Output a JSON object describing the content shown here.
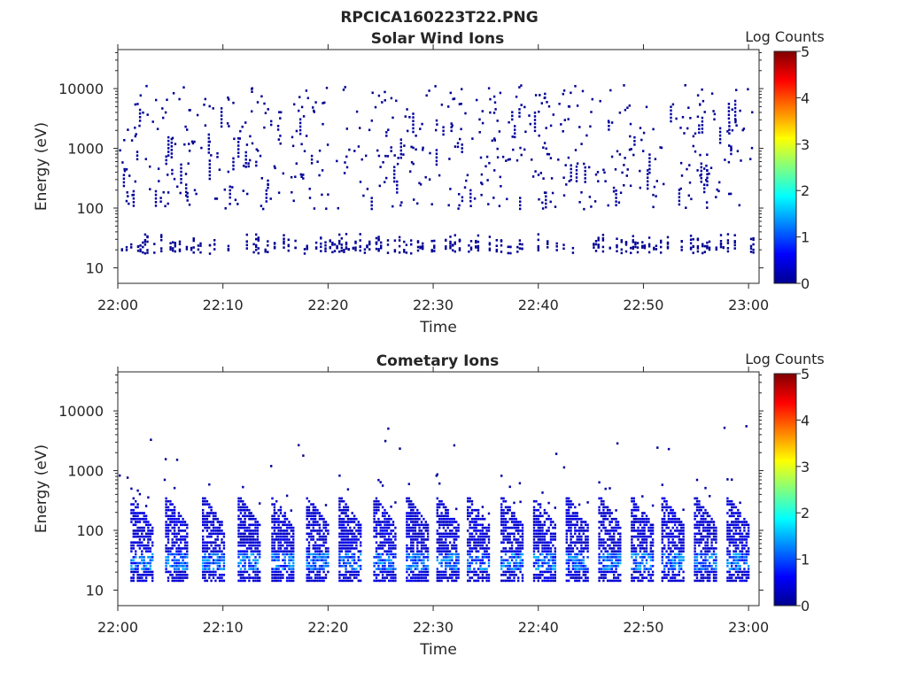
{
  "figure_title": "RPCICA160223T22.PNG",
  "colors": {
    "background": "#ffffff",
    "axis": "#262626",
    "colormap": "jet",
    "base_counts_color": "#00008f"
  },
  "chart_data": [
    {
      "type": "heatmap",
      "title": "Solar Wind Ions",
      "xlabel": "Time",
      "ylabel": "Energy (eV)",
      "xticks": [
        "22:00",
        "22:10",
        "22:20",
        "22:30",
        "22:40",
        "22:50",
        "23:00"
      ],
      "xlim_minutes": [
        0,
        61
      ],
      "yscale": "log",
      "ylim": [
        5.5,
        45000
      ],
      "yticks": [
        10,
        100,
        1000,
        10000
      ],
      "ytick_labels": [
        "10",
        "100",
        "1000",
        "10000"
      ],
      "colorbar": {
        "label": "Log Counts",
        "range": [
          0,
          5
        ],
        "ticks": [
          "0",
          "1",
          "2",
          "3",
          "4",
          "5"
        ]
      },
      "description_values": {
        "dominant_level_log_counts": 0.1,
        "low_energy_band_eV": [
          18,
          45
        ],
        "scattered_energy_range_eV": [
          100,
          12000
        ]
      }
    },
    {
      "type": "heatmap",
      "title": "Cometary Ions",
      "xlabel": "Time",
      "ylabel": "Energy (eV)",
      "xticks": [
        "22:00",
        "22:10",
        "22:20",
        "22:30",
        "22:40",
        "22:50",
        "23:00"
      ],
      "xlim_minutes": [
        0,
        61
      ],
      "yscale": "log",
      "ylim": [
        5.5,
        45000
      ],
      "yticks": [
        10,
        100,
        1000,
        10000
      ],
      "ytick_labels": [
        "10",
        "100",
        "1000",
        "10000"
      ],
      "colorbar": {
        "label": "Log Counts",
        "range": [
          0,
          5
        ],
        "ticks": [
          "0",
          "1",
          "2",
          "3",
          "4",
          "5"
        ]
      },
      "bursts_start_minute": [
        1.2,
        4.5,
        8,
        11.4,
        14.6,
        17.9,
        21,
        24.3,
        27.4,
        30.3,
        33.2,
        36.4,
        39.5,
        42.6,
        45.7,
        48.8,
        51.7,
        54.8,
        57.9
      ],
      "burst_energy_range_eV": [
        15,
        400
      ],
      "peak_level_log_counts": 1.6
    }
  ]
}
